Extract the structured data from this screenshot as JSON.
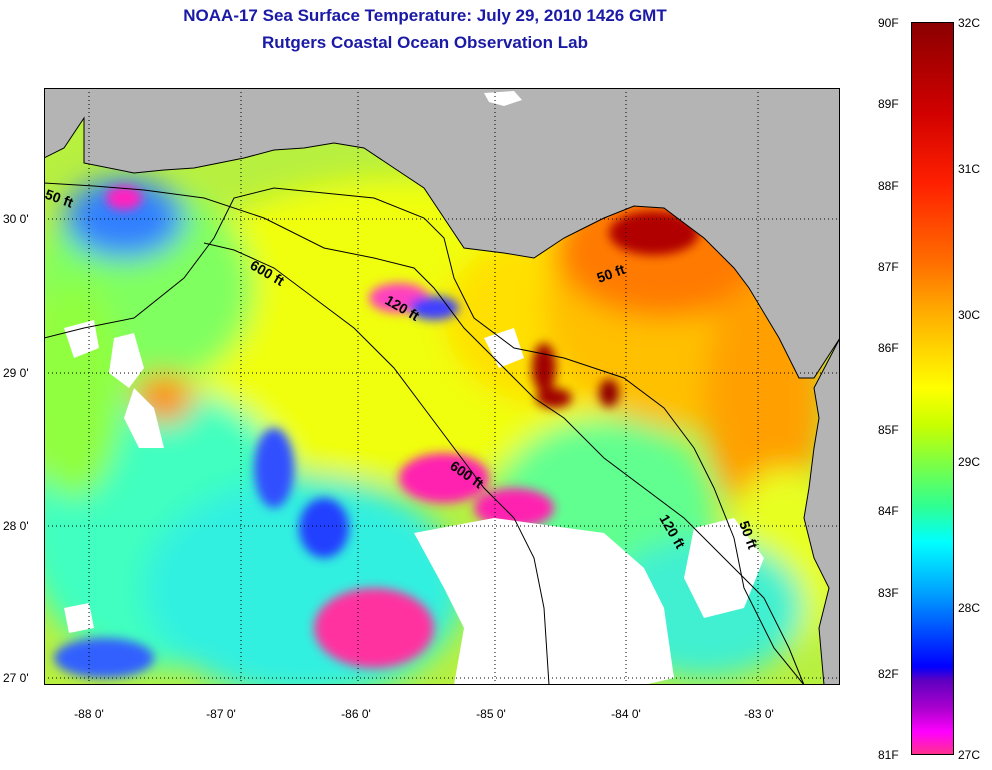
{
  "title": {
    "line1": "NOAA-17 Sea Surface Temperature:  July 29, 2010 1426 GMT",
    "line2": "Rutgers Coastal Ocean Observation Lab"
  },
  "map": {
    "y_ticks": [
      "30 0'",
      "29 0'",
      "28 0'",
      "27 0'"
    ],
    "x_ticks": [
      "-88 0'",
      "-87 0'",
      "-86 0'",
      "-85 0'",
      "-84 0'",
      "-83 0'"
    ],
    "depth_labels": [
      "50 ft",
      "600 ft",
      "120 ft",
      "50 ft",
      "600 ft",
      "120 ft",
      "50 ft"
    ],
    "land_color": "#b4b4b4",
    "no_data_color": "#ffffff"
  },
  "colorbar": {
    "fahrenheit_labels": [
      "90F",
      "89F",
      "88F",
      "87F",
      "86F",
      "85F",
      "84F",
      "83F",
      "82F",
      "81F"
    ],
    "celsius_labels": [
      "32C",
      "31C",
      "30C",
      "29C",
      "28C",
      "27C"
    ]
  }
}
